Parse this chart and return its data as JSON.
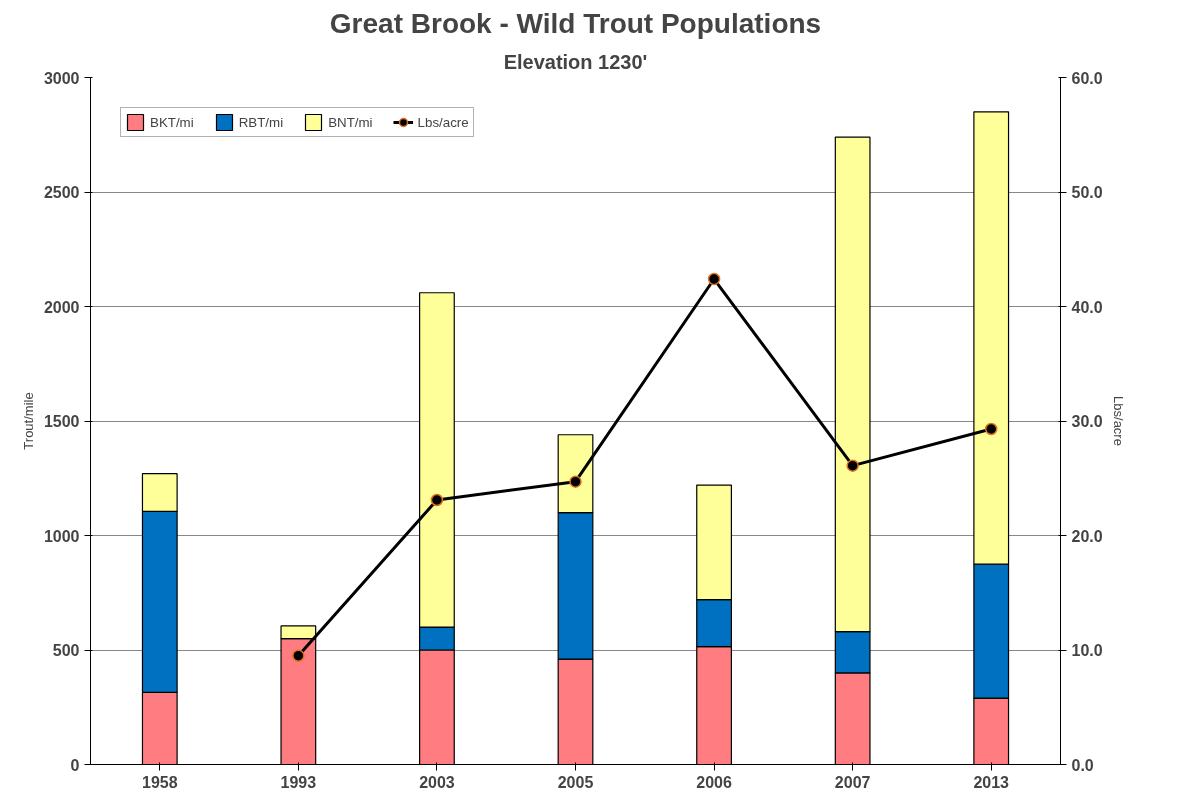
{
  "chart_data": {
    "type": "bar",
    "title": "Great Brook - Wild Trout Populations",
    "subtitle": "Elevation 1230'",
    "ylabel": "Trout/mile",
    "y2label": "Lbs/acre",
    "categories": [
      "1958",
      "1993",
      "2003",
      "2005",
      "2006",
      "2007",
      "2013"
    ],
    "stacked": true,
    "series": [
      {
        "name": "BKT/mi",
        "color": "#ff7c80",
        "values": [
          315,
          550,
          500,
          460,
          515,
          400,
          290
        ]
      },
      {
        "name": "RBT/mi",
        "color": "#0070c0",
        "values": [
          790,
          null,
          100,
          640,
          205,
          180,
          585
        ]
      },
      {
        "name": "BNT/mi",
        "color": "#ffff99",
        "values": [
          165,
          55,
          1460,
          340,
          500,
          2160,
          1975
        ]
      },
      {
        "name": "Lbs/acre",
        "type": "line",
        "axis": "y2",
        "color": "#000000",
        "marker": "circle",
        "values": [
          null,
          9.5,
          23.1,
          24.7,
          42.4,
          26.1,
          29.3
        ]
      }
    ],
    "ylim": [
      0,
      3000
    ],
    "yticks": [
      0,
      500,
      1000,
      1500,
      2000,
      2500,
      3000
    ],
    "y2lim": [
      0,
      60
    ],
    "y2ticks": [
      {
        "value": 0,
        "label": "0.0"
      },
      {
        "value": 10,
        "label": "10.0"
      },
      {
        "value": 20,
        "label": "20.0"
      },
      {
        "value": 30,
        "label": "30.0"
      },
      {
        "value": 40,
        "label": "40.0"
      },
      {
        "value": 50,
        "label": "50.0"
      },
      {
        "value": 60,
        "label": "60.0"
      }
    ],
    "grid": "y",
    "legend": "top left"
  }
}
